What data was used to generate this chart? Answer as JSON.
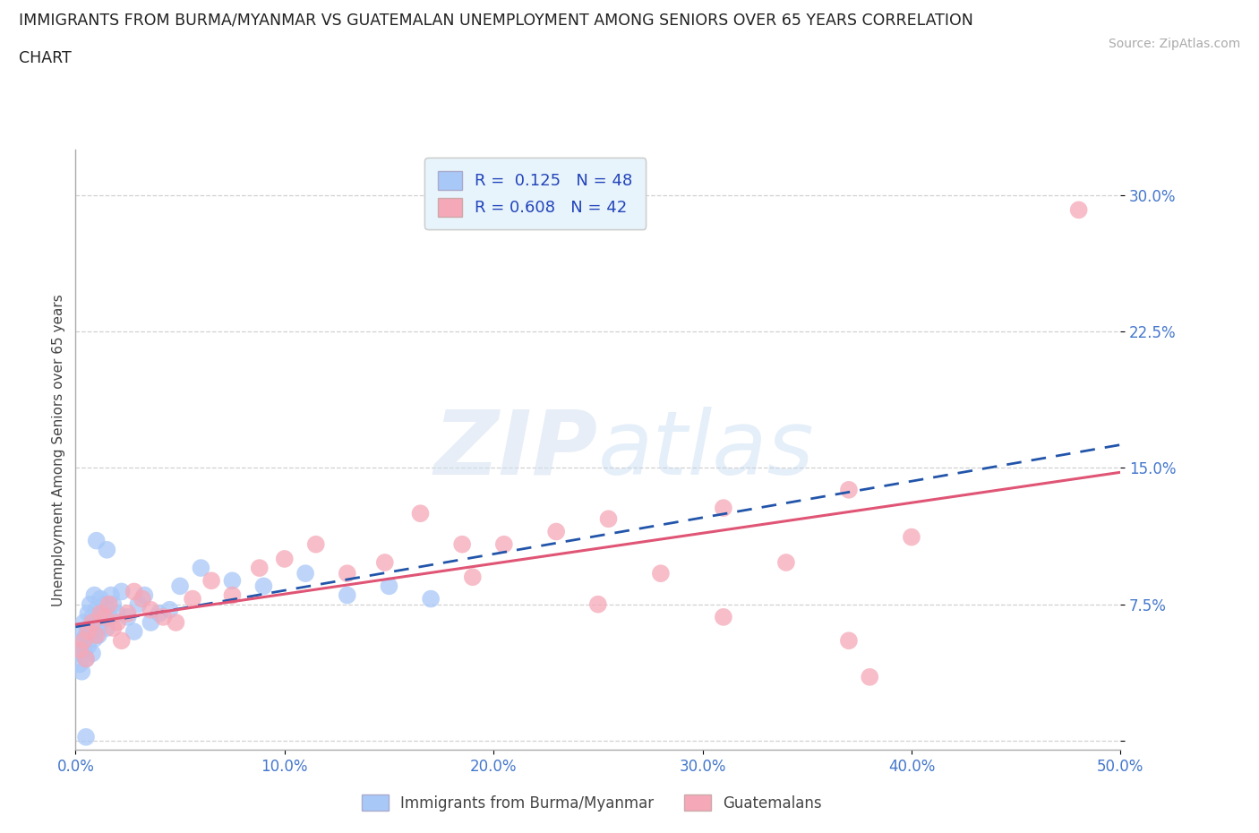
{
  "title_line1": "IMMIGRANTS FROM BURMA/MYANMAR VS GUATEMALAN UNEMPLOYMENT AMONG SENIORS OVER 65 YEARS CORRELATION",
  "title_line2": "CHART",
  "source": "Source: ZipAtlas.com",
  "ylabel": "Unemployment Among Seniors over 65 years",
  "xlim": [
    0.0,
    0.5
  ],
  "ylim": [
    -0.005,
    0.325
  ],
  "xtick_vals": [
    0.0,
    0.1,
    0.2,
    0.3,
    0.4,
    0.5
  ],
  "xticklabels": [
    "0.0%",
    "10.0%",
    "20.0%",
    "30.0%",
    "40.0%",
    "50.0%"
  ],
  "ytick_vals": [
    0.0,
    0.075,
    0.15,
    0.225,
    0.3
  ],
  "yticklabels": [
    "",
    "7.5%",
    "15.0%",
    "22.5%",
    "30.0%"
  ],
  "blue_R": "0.125",
  "blue_N": "48",
  "pink_R": "0.608",
  "pink_N": "42",
  "blue_scatter_color": "#a8c8f8",
  "pink_scatter_color": "#f5a8b8",
  "blue_line_color": "#2255aa",
  "pink_line_color": "#e05575",
  "tick_color": "#4477cc",
  "watermark_zip": "ZIP",
  "watermark_atlas": "atlas",
  "legend_bg": "#e8f4fb",
  "blue_label": "Immigrants from Burma/Myanmar",
  "pink_label": "Guatemalans",
  "blue_x": [
    0.001,
    0.002,
    0.002,
    0.003,
    0.003,
    0.004,
    0.004,
    0.005,
    0.005,
    0.006,
    0.006,
    0.007,
    0.007,
    0.008,
    0.008,
    0.009,
    0.009,
    0.01,
    0.01,
    0.011,
    0.012,
    0.012,
    0.013,
    0.014,
    0.015,
    0.016,
    0.017,
    0.018,
    0.02,
    0.022,
    0.025,
    0.028,
    0.03,
    0.033,
    0.036,
    0.04,
    0.045,
    0.05,
    0.06,
    0.075,
    0.09,
    0.11,
    0.13,
    0.15,
    0.17,
    0.01,
    0.015,
    0.005
  ],
  "blue_y": [
    0.048,
    0.042,
    0.06,
    0.038,
    0.055,
    0.05,
    0.065,
    0.045,
    0.058,
    0.052,
    0.07,
    0.06,
    0.075,
    0.048,
    0.068,
    0.056,
    0.08,
    0.062,
    0.072,
    0.058,
    0.065,
    0.078,
    0.07,
    0.075,
    0.062,
    0.068,
    0.08,
    0.075,
    0.07,
    0.082,
    0.068,
    0.06,
    0.075,
    0.08,
    0.065,
    0.07,
    0.072,
    0.085,
    0.095,
    0.088,
    0.085,
    0.092,
    0.08,
    0.085,
    0.078,
    0.11,
    0.105,
    0.002
  ],
  "pink_x": [
    0.002,
    0.004,
    0.005,
    0.006,
    0.008,
    0.01,
    0.012,
    0.014,
    0.016,
    0.018,
    0.02,
    0.022,
    0.025,
    0.028,
    0.032,
    0.036,
    0.042,
    0.048,
    0.056,
    0.065,
    0.075,
    0.088,
    0.1,
    0.115,
    0.13,
    0.148,
    0.165,
    0.185,
    0.205,
    0.23,
    0.255,
    0.28,
    0.31,
    0.34,
    0.37,
    0.4,
    0.37,
    0.31,
    0.25,
    0.19,
    0.38,
    0.48
  ],
  "pink_y": [
    0.05,
    0.055,
    0.045,
    0.06,
    0.065,
    0.058,
    0.07,
    0.068,
    0.075,
    0.062,
    0.065,
    0.055,
    0.07,
    0.082,
    0.078,
    0.072,
    0.068,
    0.065,
    0.078,
    0.088,
    0.08,
    0.095,
    0.1,
    0.108,
    0.092,
    0.098,
    0.125,
    0.108,
    0.108,
    0.115,
    0.122,
    0.092,
    0.128,
    0.098,
    0.138,
    0.112,
    0.055,
    0.068,
    0.075,
    0.09,
    0.035,
    0.292
  ]
}
